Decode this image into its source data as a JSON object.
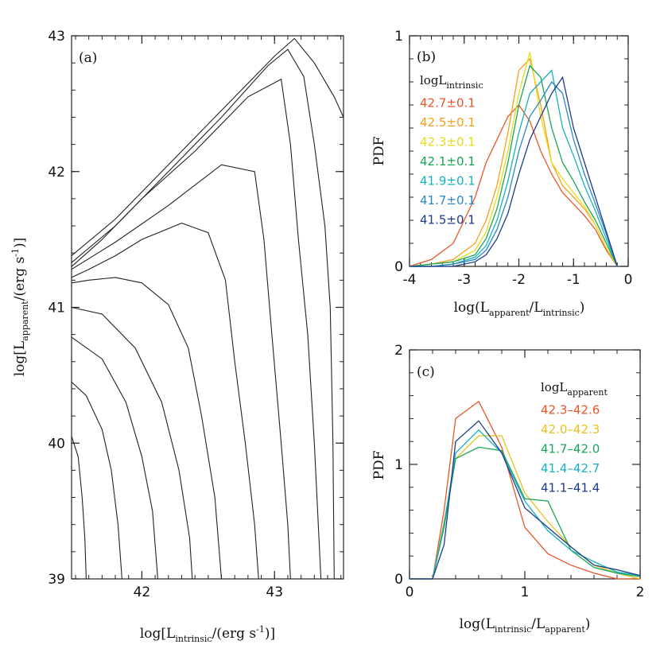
{
  "chart_data": [
    {
      "id": "a",
      "type": "contour",
      "panel_label": "(a)",
      "xlabel_main": "log[L",
      "xlabel_sub": "intrinsic",
      "xlabel_tail": "/(erg s",
      "xlabel_sup": "-1",
      "xlabel_end": ")]",
      "ylabel_main": "log[L",
      "ylabel_sub": "apparent",
      "ylabel_tail": "/(erg s",
      "ylabel_sup": "-1",
      "ylabel_end": ")]",
      "xlim": [
        41.47,
        43.52
      ],
      "ylim": [
        39,
        43
      ],
      "xticks": [
        42,
        43
      ],
      "xtick_labels": [
        "42",
        "43"
      ],
      "yticks": [
        39,
        40,
        41,
        42,
        43
      ],
      "ytick_labels": [
        "39",
        "40",
        "41",
        "42",
        "43"
      ],
      "contours": [
        [
          [
            41.47,
            41.38
          ],
          [
            41.8,
            41.65
          ],
          [
            42.2,
            42.05
          ],
          [
            42.6,
            42.45
          ],
          [
            43.0,
            42.85
          ],
          [
            43.15,
            42.98
          ],
          [
            43.3,
            42.8
          ],
          [
            43.45,
            42.55
          ],
          [
            43.52,
            42.4
          ]
        ],
        [
          [
            41.47,
            41.33
          ],
          [
            41.8,
            41.6
          ],
          [
            42.2,
            42.0
          ],
          [
            42.6,
            42.4
          ],
          [
            42.95,
            42.78
          ],
          [
            43.1,
            42.9
          ],
          [
            43.22,
            42.7
          ],
          [
            43.3,
            42.2
          ],
          [
            43.38,
            41.6
          ],
          [
            43.42,
            41.0
          ],
          [
            43.44,
            40.0
          ],
          [
            43.45,
            39.0
          ]
        ],
        [
          [
            41.47,
            41.3
          ],
          [
            41.7,
            41.5
          ],
          [
            42.0,
            41.8
          ],
          [
            42.4,
            42.15
          ],
          [
            42.8,
            42.55
          ],
          [
            43.05,
            42.68
          ],
          [
            43.12,
            42.2
          ],
          [
            43.18,
            41.5
          ],
          [
            43.25,
            40.8
          ],
          [
            43.3,
            40.0
          ],
          [
            43.35,
            39.0
          ]
        ],
        [
          [
            41.47,
            41.28
          ],
          [
            41.8,
            41.48
          ],
          [
            42.2,
            41.75
          ],
          [
            42.6,
            42.05
          ],
          [
            42.85,
            42.0
          ],
          [
            42.92,
            41.5
          ],
          [
            42.98,
            40.8
          ],
          [
            43.05,
            40.0
          ],
          [
            43.1,
            39.4
          ],
          [
            43.12,
            39.0
          ]
        ],
        [
          [
            41.47,
            41.22
          ],
          [
            41.6,
            41.28
          ],
          [
            41.8,
            41.38
          ],
          [
            42.0,
            41.5
          ],
          [
            42.3,
            41.62
          ],
          [
            42.5,
            41.55
          ],
          [
            42.63,
            41.2
          ],
          [
            42.7,
            40.6
          ],
          [
            42.78,
            40.0
          ],
          [
            42.85,
            39.4
          ],
          [
            42.88,
            39.0
          ]
        ],
        [
          [
            41.47,
            41.18
          ],
          [
            41.6,
            41.2
          ],
          [
            41.8,
            41.22
          ],
          [
            42.0,
            41.18
          ],
          [
            42.2,
            41.02
          ],
          [
            42.35,
            40.7
          ],
          [
            42.45,
            40.2
          ],
          [
            42.55,
            39.6
          ],
          [
            42.6,
            39.0
          ]
        ],
        [
          [
            41.47,
            41.0
          ],
          [
            41.7,
            40.95
          ],
          [
            41.95,
            40.7
          ],
          [
            42.15,
            40.3
          ],
          [
            42.28,
            39.8
          ],
          [
            42.36,
            39.3
          ],
          [
            42.38,
            39.0
          ]
        ],
        [
          [
            41.47,
            40.78
          ],
          [
            41.7,
            40.62
          ],
          [
            41.88,
            40.3
          ],
          [
            42.0,
            39.9
          ],
          [
            42.08,
            39.5
          ],
          [
            42.12,
            39.0
          ]
        ],
        [
          [
            41.47,
            40.45
          ],
          [
            41.58,
            40.35
          ],
          [
            41.7,
            40.1
          ],
          [
            41.77,
            39.8
          ],
          [
            41.82,
            39.4
          ],
          [
            41.85,
            39.0
          ]
        ],
        [
          [
            41.47,
            40.05
          ],
          [
            41.52,
            39.9
          ],
          [
            41.55,
            39.6
          ],
          [
            41.57,
            39.3
          ],
          [
            41.58,
            39.0
          ]
        ]
      ]
    },
    {
      "id": "b",
      "type": "line",
      "panel_label": "(b)",
      "ylabel": "PDF",
      "xlabel_main": "log(L",
      "xlabel_sub": "apparent",
      "xlabel_mid": "/L",
      "xlabel_sub2": "intrinsic",
      "xlabel_end": ")",
      "xlim": [
        -4,
        0
      ],
      "ylim": [
        0,
        1
      ],
      "xticks": [
        -4,
        -3,
        -2,
        -1,
        0
      ],
      "xtick_labels": [
        "-4",
        "-3",
        "-2",
        "-1",
        "0"
      ],
      "yticks": [
        0,
        1
      ],
      "ytick_labels": [
        "0",
        "1"
      ],
      "legend_title_main": "logL",
      "legend_title_sub": "intrinsic",
      "x": [
        -4.0,
        -3.6,
        -3.2,
        -2.8,
        -2.6,
        -2.4,
        -2.2,
        -2.0,
        -1.8,
        -1.6,
        -1.4,
        -1.2,
        -1.0,
        -0.8,
        -0.6,
        -0.4,
        -0.2
      ],
      "series": [
        {
          "name": "42.7±0.1",
          "color": "#e8562a",
          "values": [
            0.0,
            0.03,
            0.1,
            0.3,
            0.45,
            0.55,
            0.65,
            0.7,
            0.63,
            0.5,
            0.4,
            0.32,
            0.27,
            0.22,
            0.16,
            0.07,
            0.0
          ]
        },
        {
          "name": "42.5±0.1",
          "color": "#f4a01c",
          "values": [
            0.0,
            0.01,
            0.03,
            0.1,
            0.2,
            0.35,
            0.58,
            0.85,
            0.9,
            0.7,
            0.45,
            0.35,
            0.3,
            0.25,
            0.18,
            0.08,
            0.0
          ]
        },
        {
          "name": "42.3±0.1",
          "color": "#e6dc1a",
          "values": [
            0.0,
            0.01,
            0.02,
            0.07,
            0.15,
            0.3,
            0.5,
            0.75,
            0.93,
            0.65,
            0.45,
            0.38,
            0.32,
            0.26,
            0.18,
            0.08,
            0.0
          ]
        },
        {
          "name": "42.1±0.1",
          "color": "#18a555",
          "values": [
            0.0,
            0.01,
            0.02,
            0.05,
            0.12,
            0.25,
            0.45,
            0.7,
            0.87,
            0.82,
            0.6,
            0.45,
            0.37,
            0.28,
            0.2,
            0.1,
            0.0
          ]
        },
        {
          "name": "41.9±0.1",
          "color": "#16b2bc",
          "values": [
            0.0,
            0.0,
            0.01,
            0.04,
            0.09,
            0.2,
            0.37,
            0.58,
            0.75,
            0.8,
            0.85,
            0.6,
            0.48,
            0.35,
            0.24,
            0.12,
            0.0
          ]
        },
        {
          "name": "41.7±0.1",
          "color": "#2b86c8",
          "values": [
            0.0,
            0.0,
            0.01,
            0.03,
            0.07,
            0.16,
            0.3,
            0.5,
            0.65,
            0.72,
            0.8,
            0.75,
            0.55,
            0.4,
            0.27,
            0.14,
            0.0
          ]
        },
        {
          "name": "41.5±0.1",
          "color": "#1f3a8a",
          "values": [
            0.0,
            0.0,
            0.0,
            0.02,
            0.05,
            0.12,
            0.23,
            0.4,
            0.55,
            0.65,
            0.75,
            0.82,
            0.6,
            0.45,
            0.3,
            0.15,
            0.0
          ]
        }
      ]
    },
    {
      "id": "c",
      "type": "line",
      "panel_label": "(c)",
      "ylabel": "PDF",
      "xlabel_main": "log(L",
      "xlabel_sub": "intrinsic",
      "xlabel_mid": "/L",
      "xlabel_sub2": "apparent",
      "xlabel_end": ")",
      "xlim": [
        0,
        2
      ],
      "ylim": [
        0,
        2
      ],
      "xticks": [
        0,
        1,
        2
      ],
      "xtick_labels": [
        "0",
        "1",
        "2"
      ],
      "yticks": [
        0,
        1,
        2
      ],
      "ytick_labels": [
        "0",
        "1",
        "2"
      ],
      "legend_title_main": "logL",
      "legend_title_sub": "apparent",
      "x": [
        0.0,
        0.2,
        0.3,
        0.4,
        0.6,
        0.8,
        1.0,
        1.2,
        1.4,
        1.6,
        1.8,
        2.0
      ],
      "series": [
        {
          "name": "42.3–42.6",
          "color": "#e8562a",
          "values": [
            0.0,
            0.0,
            0.6,
            1.4,
            1.55,
            1.15,
            0.45,
            0.22,
            0.12,
            0.05,
            0.0,
            0.0
          ]
        },
        {
          "name": "42.0–42.3",
          "color": "#e6c21a",
          "values": [
            0.0,
            0.0,
            0.5,
            1.05,
            1.25,
            1.25,
            0.75,
            0.5,
            0.28,
            0.12,
            0.05,
            0.0
          ]
        },
        {
          "name": "41.7–42.0",
          "color": "#18a555",
          "values": [
            0.0,
            0.0,
            0.45,
            1.05,
            1.15,
            1.12,
            0.7,
            0.68,
            0.25,
            0.1,
            0.05,
            0.02
          ]
        },
        {
          "name": "41.4–42.7",
          "color": "#16b2bc",
          "values": [
            0.0,
            0.0,
            0.48,
            1.1,
            1.3,
            1.1,
            0.68,
            0.42,
            0.25,
            0.15,
            0.06,
            0.03
          ]
        },
        {
          "name": "41.1–41.4",
          "color": "#1f3a8a",
          "values": [
            0.0,
            0.0,
            0.3,
            1.2,
            1.38,
            1.1,
            0.62,
            0.45,
            0.28,
            0.12,
            0.08,
            0.03
          ]
        }
      ]
    }
  ]
}
